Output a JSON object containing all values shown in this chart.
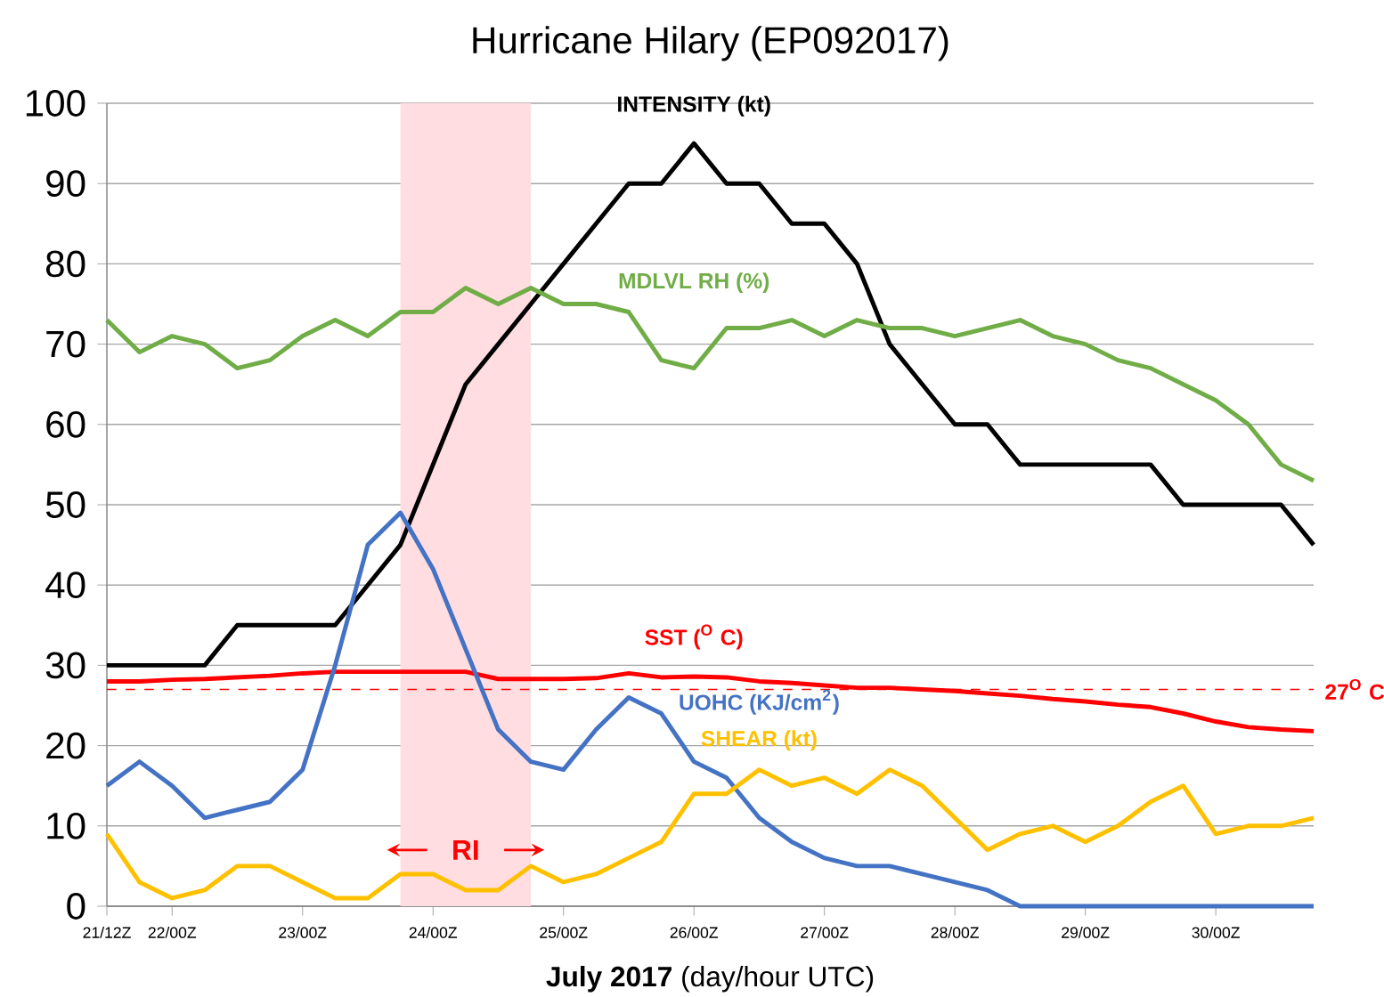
{
  "chart_data": {
    "type": "line",
    "title": "Hurricane Hilary (EP092017)",
    "xlabel": "**July  2017**  (day/hour UTC)",
    "x": [
      "2017-07-21T12:00",
      "2017-07-21T18:00",
      "2017-07-22T00:00",
      "2017-07-22T06:00",
      "2017-07-22T12:00",
      "2017-07-22T18:00",
      "2017-07-23T00:00",
      "2017-07-23T06:00",
      "2017-07-23T12:00",
      "2017-07-23T18:00",
      "2017-07-24T00:00",
      "2017-07-24T06:00",
      "2017-07-24T12:00",
      "2017-07-24T18:00",
      "2017-07-25T00:00",
      "2017-07-25T06:00",
      "2017-07-25T12:00",
      "2017-07-25T18:00",
      "2017-07-26T00:00",
      "2017-07-26T06:00",
      "2017-07-26T12:00",
      "2017-07-26T18:00",
      "2017-07-27T00:00",
      "2017-07-27T06:00",
      "2017-07-27T12:00",
      "2017-07-27T18:00",
      "2017-07-28T00:00",
      "2017-07-28T06:00",
      "2017-07-28T12:00",
      "2017-07-28T18:00",
      "2017-07-29T00:00",
      "2017-07-29T06:00",
      "2017-07-29T12:00",
      "2017-07-29T18:00",
      "2017-07-30T00:00",
      "2017-07-30T06:00",
      "2017-07-30T12:00",
      "2017-07-30T18:00"
    ],
    "series": [
      {
        "name": "INTENSITY (**kt**)",
        "color": "#000000",
        "values": [
          30,
          30,
          30,
          30,
          35,
          35,
          35,
          35,
          40,
          45,
          55,
          65,
          70,
          75,
          80,
          85,
          90,
          90,
          95,
          90,
          90,
          85,
          85,
          80,
          70,
          65,
          60,
          60,
          55,
          55,
          55,
          55,
          55,
          50,
          50,
          50,
          50,
          45
        ]
      },
      {
        "name": "MDLVL RH (%)",
        "color": "#70ad47",
        "values": [
          73,
          69,
          71,
          70,
          67,
          68,
          71,
          73,
          71,
          74,
          74,
          77,
          75,
          77,
          75,
          75,
          74,
          68,
          67,
          72,
          72,
          73,
          71,
          73,
          72,
          72,
          71,
          72,
          73,
          71,
          70,
          68,
          67,
          65,
          63,
          60,
          55,
          53
        ]
      },
      {
        "name": "SST ($^{O}$ C)",
        "color": "#ff0000",
        "values": [
          28,
          28,
          28.2,
          28.3,
          28.5,
          28.7,
          29,
          29.2,
          29.2,
          29.2,
          29.2,
          29.2,
          28.3,
          28.3,
          28.3,
          28.4,
          29,
          28.5,
          28.6,
          28.5,
          28,
          27.8,
          27.5,
          27.2,
          27.2,
          27,
          26.8,
          26.5,
          26.2,
          25.8,
          25.5,
          25.1,
          24.8,
          24,
          23,
          22.3,
          22,
          21.8
        ]
      },
      {
        "name": "UOHC (KJ/cm$^{2}$)",
        "color": "#4472c4",
        "values": [
          15,
          18,
          15,
          11,
          12,
          13,
          17,
          30,
          45,
          49,
          42,
          32,
          22,
          18,
          17,
          22,
          26,
          24,
          18,
          16,
          11,
          8,
          6,
          5,
          5,
          4,
          3,
          2,
          0,
          0,
          0,
          0,
          0,
          0,
          0,
          0,
          0,
          0
        ]
      },
      {
        "name": "SHEAR (kt)",
        "color": "#ffc000",
        "values": [
          9,
          3,
          1,
          2,
          5,
          5,
          3,
          1,
          1,
          4,
          4,
          2,
          2,
          5,
          3,
          4,
          6,
          8,
          14,
          14,
          17,
          15,
          16,
          14,
          17,
          15,
          11,
          7,
          9,
          10,
          8,
          10,
          13,
          15,
          9,
          10,
          10,
          11
        ]
      }
    ],
    "xlim": [
      "2017-07-21T12:00",
      "2017-07-30T18:00"
    ],
    "xticks": [
      {
        "value": "2017-07-21T12:00",
        "label": "21/12Z"
      },
      {
        "value": "2017-07-22T00:00",
        "label": "22/00Z"
      },
      {
        "value": "2017-07-23T00:00",
        "label": "23/00Z"
      },
      {
        "value": "2017-07-24T00:00",
        "label": "24/00Z"
      },
      {
        "value": "2017-07-25T00:00",
        "label": "25/00Z"
      },
      {
        "value": "2017-07-26T00:00",
        "label": "26/00Z"
      },
      {
        "value": "2017-07-27T00:00",
        "label": "27/00Z"
      },
      {
        "value": "2017-07-28T00:00",
        "label": "28/00Z"
      },
      {
        "value": "2017-07-29T00:00",
        "label": "29/00Z"
      },
      {
        "value": "2017-07-30T00:00",
        "label": "30/00Z"
      }
    ],
    "ylim": [
      0,
      100
    ],
    "yticks": [
      0,
      10,
      20,
      30,
      40,
      50,
      60,
      70,
      80,
      90,
      100
    ],
    "grid": "y",
    "ref_lines": [
      {
        "axis": "y",
        "value": 27,
        "label": "27$^{O}$ C",
        "color": "#ff0000",
        "line_style": "dashed"
      }
    ],
    "bands": [
      {
        "axis": "x",
        "from": "2017-07-23T18:00",
        "to": "2017-07-24T18:00",
        "label": "RI",
        "color": "#ffdde0"
      }
    ]
  }
}
